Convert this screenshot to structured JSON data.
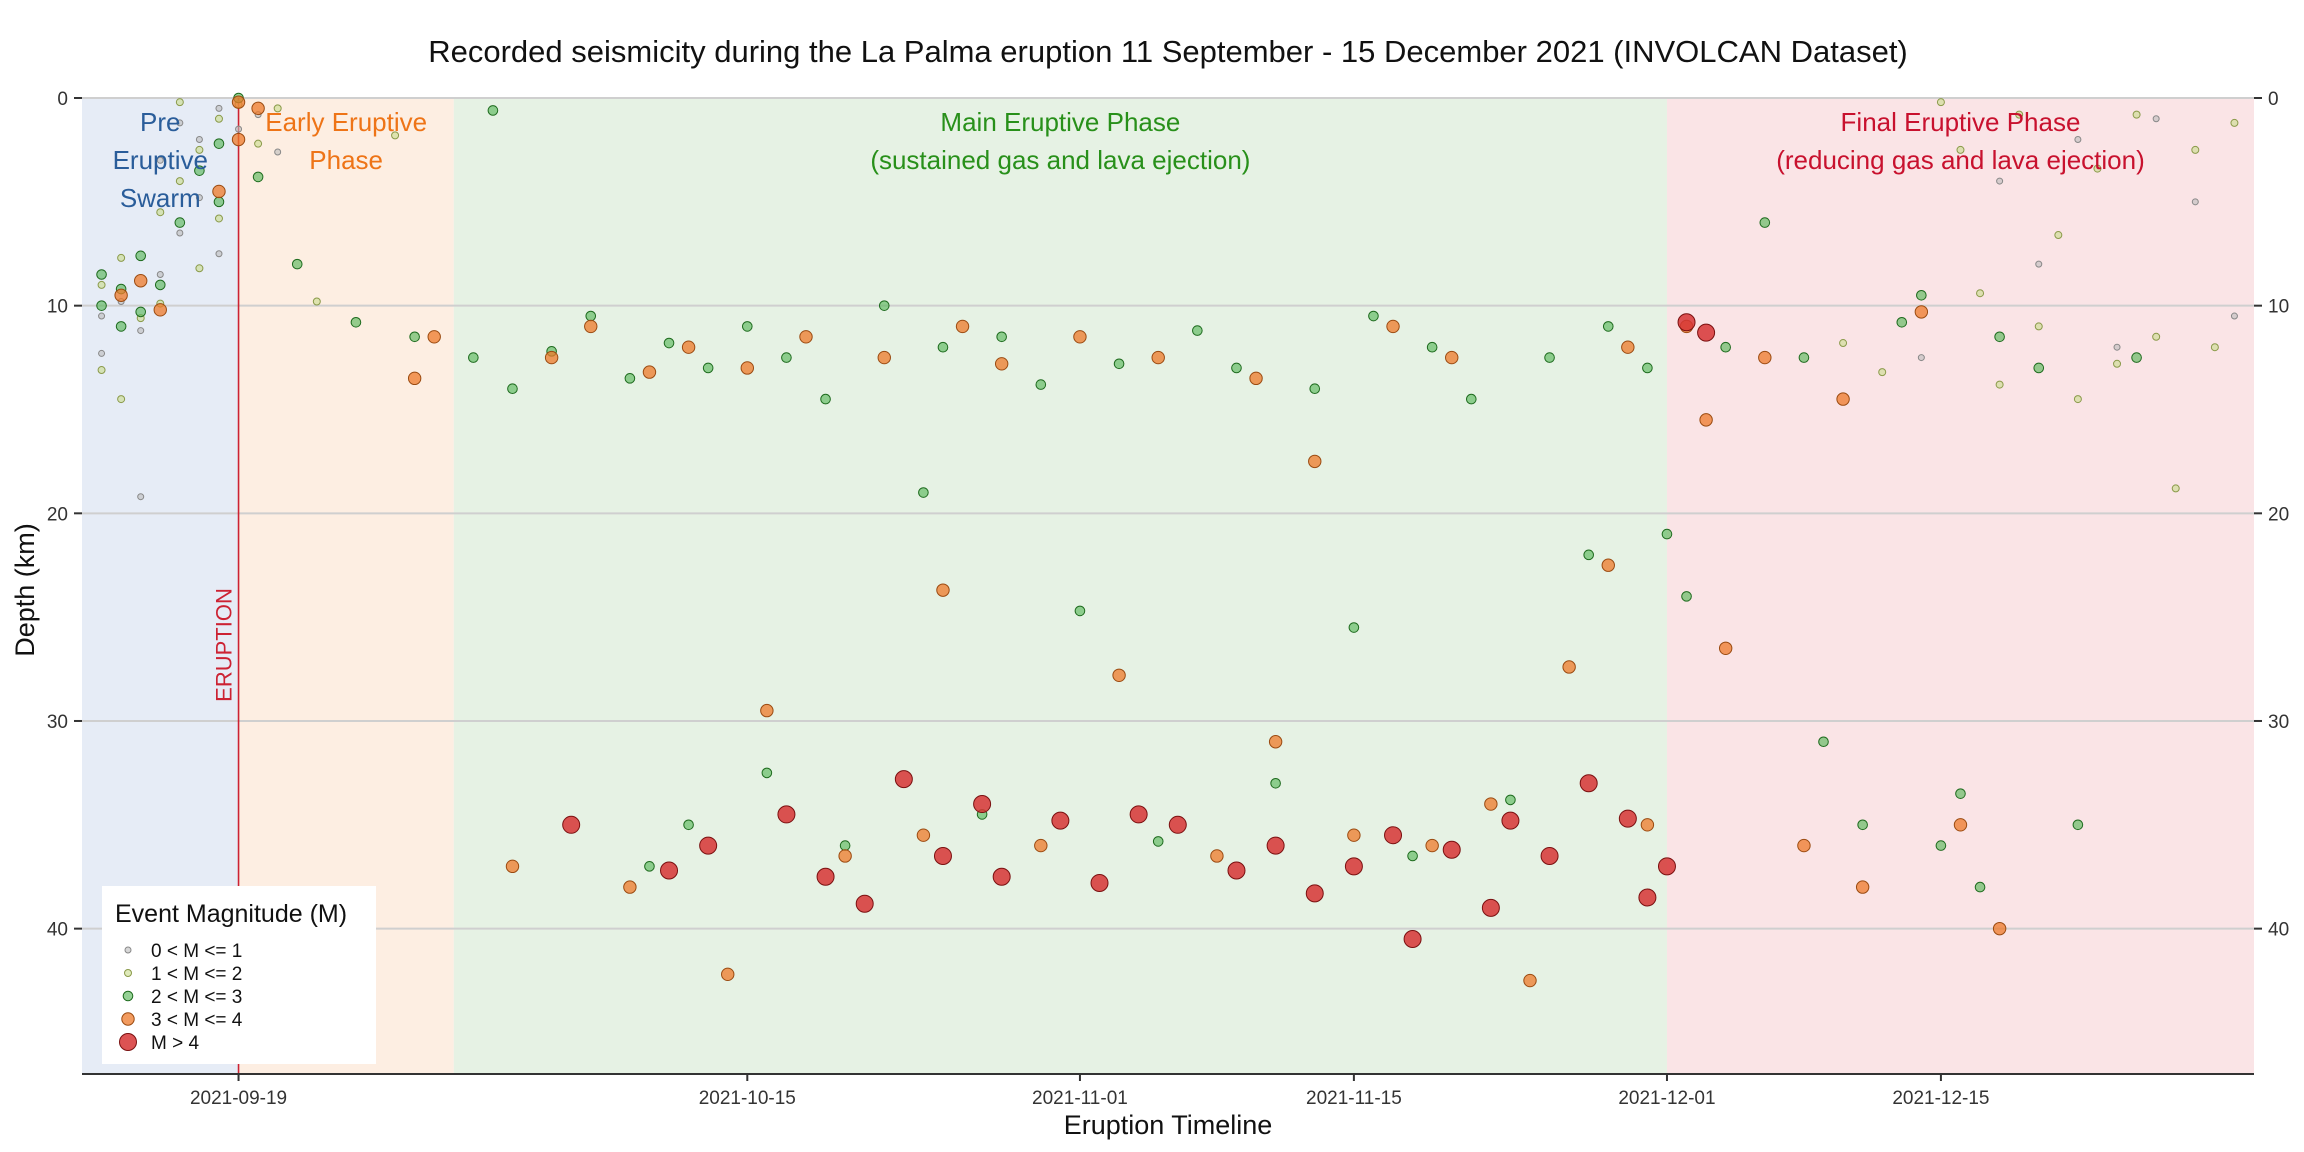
{
  "chart_data": {
    "type": "scatter",
    "title": "Recorded seismicity during the La Palma eruption 11 September - 15 December 2021 (INVOLCAN Dataset)",
    "xlabel": "Eruption Timeline",
    "ylabel": "Depth (km)",
    "x_range": [
      "2021-09-11",
      "2021-12-31"
    ],
    "y_range": [
      0,
      47
    ],
    "y_reversed": true,
    "x_ticks": [
      "2021-09-19",
      "2021-10-15",
      "2021-11-01",
      "2021-11-15",
      "2021-12-01",
      "2021-12-15"
    ],
    "y_ticks": [
      0,
      10,
      20,
      30,
      40
    ],
    "grid": "horizontal",
    "eruption_marker": {
      "date": "2021-09-19",
      "label": "ERUPTION",
      "color": "#cc2233"
    },
    "phases": [
      {
        "name": "pre",
        "lines": [
          "Pre",
          "Eruptive",
          "Swarm"
        ],
        "start": "2021-09-11",
        "end": "2021-09-19",
        "fill": "#e6ecf6",
        "text_color": "#2a5d9a"
      },
      {
        "name": "early",
        "lines": [
          "Early Eruptive",
          "Phase"
        ],
        "start": "2021-09-19",
        "end": "2021-09-30",
        "fill": "#fdeee2",
        "text_color": "#ee7417"
      },
      {
        "name": "main",
        "lines": [
          "Main Eruptive Phase",
          "(sustained gas and lava ejection)"
        ],
        "start": "2021-09-30",
        "end": "2021-12-01",
        "fill": "#e6f2e4",
        "text_color": "#28901a"
      },
      {
        "name": "final",
        "lines": [
          "Final Eruptive Phase",
          "(reducing gas and lava ejection)"
        ],
        "start": "2021-12-01",
        "end": "2021-12-31",
        "fill": "#fae4e6",
        "text_color": "#c8112e"
      }
    ],
    "legend": {
      "title": "Event Magnitude (M)",
      "position": "bottom-left",
      "entries": [
        {
          "label": "0 < M <= 1",
          "color": "#bcbcbc",
          "stroke": "#888888"
        },
        {
          "label": "1 < M <= 2",
          "color": "#c9dc8c",
          "stroke": "#8a9a4a"
        },
        {
          "label": "2 < M <= 3",
          "color": "#5cb85c",
          "stroke": "#1e6b1e"
        },
        {
          "label": "3 < M <= 4",
          "color": "#ee7a2a",
          "stroke": "#9a4a10"
        },
        {
          "label": "M > 4",
          "color": "#d63535",
          "stroke": "#7a1010"
        }
      ]
    },
    "series": [
      {
        "name": "0 < M <= 1",
        "points": [
          [
            "2021-09-12",
            10.5
          ],
          [
            "2021-09-12",
            12.3
          ],
          [
            "2021-09-13",
            9.8
          ],
          [
            "2021-09-14",
            11.2
          ],
          [
            "2021-09-14",
            19.2
          ],
          [
            "2021-09-15",
            8.5
          ],
          [
            "2021-09-15",
            3.0
          ],
          [
            "2021-09-16",
            6.5
          ],
          [
            "2021-09-16",
            1.2
          ],
          [
            "2021-09-17",
            4.8
          ],
          [
            "2021-09-17",
            2.0
          ],
          [
            "2021-09-18",
            0.5
          ],
          [
            "2021-09-18",
            7.5
          ],
          [
            "2021-09-19",
            1.5
          ],
          [
            "2021-09-20",
            0.8
          ],
          [
            "2021-09-21",
            2.6
          ],
          [
            "2021-12-14",
            12.5
          ],
          [
            "2021-12-18",
            4.0
          ],
          [
            "2021-12-20",
            8.0
          ],
          [
            "2021-12-22",
            2.0
          ],
          [
            "2021-12-24",
            12.0
          ],
          [
            "2021-12-26",
            1.0
          ],
          [
            "2021-12-28",
            5.0
          ],
          [
            "2021-12-30",
            10.5
          ]
        ]
      },
      {
        "name": "1 < M <= 2",
        "points": [
          [
            "2021-09-12",
            9.0
          ],
          [
            "2021-09-12",
            13.1
          ],
          [
            "2021-09-13",
            7.7
          ],
          [
            "2021-09-13",
            14.5
          ],
          [
            "2021-09-14",
            10.6
          ],
          [
            "2021-09-15",
            5.5
          ],
          [
            "2021-09-15",
            9.9
          ],
          [
            "2021-09-16",
            4.0
          ],
          [
            "2021-09-16",
            0.2
          ],
          [
            "2021-09-17",
            2.5
          ],
          [
            "2021-09-17",
            8.2
          ],
          [
            "2021-09-18",
            1.0
          ],
          [
            "2021-09-18",
            5.8
          ],
          [
            "2021-09-19",
            0.3
          ],
          [
            "2021-09-20",
            2.2
          ],
          [
            "2021-09-21",
            0.5
          ],
          [
            "2021-09-23",
            9.8
          ],
          [
            "2021-09-27",
            1.8
          ],
          [
            "2021-12-10",
            11.8
          ],
          [
            "2021-12-12",
            13.2
          ],
          [
            "2021-12-15",
            0.2
          ],
          [
            "2021-12-16",
            2.5
          ],
          [
            "2021-12-17",
            9.4
          ],
          [
            "2021-12-18",
            13.8
          ],
          [
            "2021-12-19",
            0.8
          ],
          [
            "2021-12-20",
            11.0
          ],
          [
            "2021-12-21",
            6.6
          ],
          [
            "2021-12-22",
            14.5
          ],
          [
            "2021-12-23",
            3.4
          ],
          [
            "2021-12-24",
            12.8
          ],
          [
            "2021-12-25",
            0.8
          ],
          [
            "2021-12-26",
            11.5
          ],
          [
            "2021-12-27",
            18.8
          ],
          [
            "2021-12-28",
            2.5
          ],
          [
            "2021-12-29",
            12.0
          ],
          [
            "2021-12-30",
            1.2
          ]
        ]
      },
      {
        "name": "2 < M <= 3",
        "points": [
          [
            "2021-09-12",
            10.0
          ],
          [
            "2021-09-12",
            8.5
          ],
          [
            "2021-09-13",
            11.0
          ],
          [
            "2021-09-13",
            9.2
          ],
          [
            "2021-09-14",
            10.3
          ],
          [
            "2021-09-14",
            7.6
          ],
          [
            "2021-09-15",
            9.0
          ],
          [
            "2021-09-16",
            6.0
          ],
          [
            "2021-09-17",
            3.5
          ],
          [
            "2021-09-18",
            2.2
          ],
          [
            "2021-09-18",
            5.0
          ],
          [
            "2021-09-19",
            0.0
          ],
          [
            "2021-09-20",
            3.8
          ],
          [
            "2021-09-22",
            8.0
          ],
          [
            "2021-09-25",
            10.8
          ],
          [
            "2021-09-28",
            11.5
          ],
          [
            "2021-10-01",
            12.5
          ],
          [
            "2021-10-02",
            0.6
          ],
          [
            "2021-10-03",
            14.0
          ],
          [
            "2021-10-05",
            12.2
          ],
          [
            "2021-10-07",
            10.5
          ],
          [
            "2021-10-09",
            13.5
          ],
          [
            "2021-10-10",
            37.0
          ],
          [
            "2021-10-11",
            11.8
          ],
          [
            "2021-10-12",
            35.0
          ],
          [
            "2021-10-13",
            13.0
          ],
          [
            "2021-10-15",
            11.0
          ],
          [
            "2021-10-16",
            32.5
          ],
          [
            "2021-10-17",
            12.5
          ],
          [
            "2021-10-19",
            14.5
          ],
          [
            "2021-10-20",
            36.0
          ],
          [
            "2021-10-22",
            10.0
          ],
          [
            "2021-10-24",
            19.0
          ],
          [
            "2021-10-25",
            12.0
          ],
          [
            "2021-10-27",
            34.5
          ],
          [
            "2021-10-28",
            11.5
          ],
          [
            "2021-10-30",
            13.8
          ],
          [
            "2021-11-01",
            24.7
          ],
          [
            "2021-11-03",
            12.8
          ],
          [
            "2021-11-05",
            35.8
          ],
          [
            "2021-11-07",
            11.2
          ],
          [
            "2021-11-09",
            13.0
          ],
          [
            "2021-11-11",
            33.0
          ],
          [
            "2021-11-13",
            14.0
          ],
          [
            "2021-11-15",
            25.5
          ],
          [
            "2021-11-16",
            10.5
          ],
          [
            "2021-11-18",
            36.5
          ],
          [
            "2021-11-19",
            12.0
          ],
          [
            "2021-11-21",
            14.5
          ],
          [
            "2021-11-23",
            33.8
          ],
          [
            "2021-11-25",
            12.5
          ],
          [
            "2021-11-27",
            22.0
          ],
          [
            "2021-11-28",
            11.0
          ],
          [
            "2021-11-30",
            13.0
          ],
          [
            "2021-12-01",
            21.0
          ],
          [
            "2021-12-02",
            24.0
          ],
          [
            "2021-12-04",
            12.0
          ],
          [
            "2021-12-06",
            6.0
          ],
          [
            "2021-12-08",
            12.5
          ],
          [
            "2021-12-09",
            31.0
          ],
          [
            "2021-12-11",
            35.0
          ],
          [
            "2021-12-13",
            10.8
          ],
          [
            "2021-12-14",
            9.5
          ],
          [
            "2021-12-15",
            36.0
          ],
          [
            "2021-12-16",
            33.5
          ],
          [
            "2021-12-17",
            38.0
          ],
          [
            "2021-12-18",
            11.5
          ],
          [
            "2021-12-20",
            13.0
          ],
          [
            "2021-12-22",
            35.0
          ],
          [
            "2021-12-25",
            12.5
          ]
        ]
      },
      {
        "name": "3 < M <= 4",
        "points": [
          [
            "2021-09-13",
            9.5
          ],
          [
            "2021-09-14",
            8.8
          ],
          [
            "2021-09-15",
            10.2
          ],
          [
            "2021-09-18",
            4.5
          ],
          [
            "2021-09-19",
            0.2
          ],
          [
            "2021-09-19",
            2.0
          ],
          [
            "2021-09-20",
            0.5
          ],
          [
            "2021-09-28",
            13.5
          ],
          [
            "2021-09-29",
            11.5
          ],
          [
            "2021-10-03",
            37.0
          ],
          [
            "2021-10-05",
            12.5
          ],
          [
            "2021-10-07",
            11.0
          ],
          [
            "2021-10-09",
            38.0
          ],
          [
            "2021-10-10",
            13.2
          ],
          [
            "2021-10-12",
            12.0
          ],
          [
            "2021-10-14",
            42.2
          ],
          [
            "2021-10-15",
            13.0
          ],
          [
            "2021-10-16",
            29.5
          ],
          [
            "2021-10-18",
            11.5
          ],
          [
            "2021-10-20",
            36.5
          ],
          [
            "2021-10-22",
            12.5
          ],
          [
            "2021-10-24",
            35.5
          ],
          [
            "2021-10-25",
            23.7
          ],
          [
            "2021-10-26",
            11.0
          ],
          [
            "2021-10-28",
            12.8
          ],
          [
            "2021-10-30",
            36.0
          ],
          [
            "2021-11-01",
            11.5
          ],
          [
            "2021-11-03",
            27.8
          ],
          [
            "2021-11-05",
            12.5
          ],
          [
            "2021-11-08",
            36.5
          ],
          [
            "2021-11-10",
            13.5
          ],
          [
            "2021-11-11",
            31.0
          ],
          [
            "2021-11-13",
            17.5
          ],
          [
            "2021-11-15",
            35.5
          ],
          [
            "2021-11-17",
            11.0
          ],
          [
            "2021-11-19",
            36.0
          ],
          [
            "2021-11-20",
            12.5
          ],
          [
            "2021-11-22",
            34.0
          ],
          [
            "2021-11-24",
            42.5
          ],
          [
            "2021-11-26",
            27.4
          ],
          [
            "2021-11-28",
            22.5
          ],
          [
            "2021-11-29",
            12.0
          ],
          [
            "2021-11-30",
            35.0
          ],
          [
            "2021-12-02",
            11.0
          ],
          [
            "2021-12-03",
            15.5
          ],
          [
            "2021-12-04",
            26.5
          ],
          [
            "2021-12-06",
            12.5
          ],
          [
            "2021-12-08",
            36.0
          ],
          [
            "2021-12-10",
            14.5
          ],
          [
            "2021-12-11",
            38.0
          ],
          [
            "2021-12-14",
            10.3
          ],
          [
            "2021-12-16",
            35.0
          ],
          [
            "2021-12-18",
            40.0
          ]
        ]
      },
      {
        "name": "M > 4",
        "points": [
          [
            "2021-10-06",
            35.0
          ],
          [
            "2021-10-11",
            37.2
          ],
          [
            "2021-10-13",
            36.0
          ],
          [
            "2021-10-17",
            34.5
          ],
          [
            "2021-10-19",
            37.5
          ],
          [
            "2021-10-21",
            38.8
          ],
          [
            "2021-10-23",
            32.8
          ],
          [
            "2021-10-25",
            36.5
          ],
          [
            "2021-10-27",
            34.0
          ],
          [
            "2021-10-28",
            37.5
          ],
          [
            "2021-10-31",
            34.8
          ],
          [
            "2021-11-02",
            37.8
          ],
          [
            "2021-11-04",
            34.5
          ],
          [
            "2021-11-06",
            35.0
          ],
          [
            "2021-11-09",
            37.2
          ],
          [
            "2021-11-11",
            36.0
          ],
          [
            "2021-11-13",
            38.3
          ],
          [
            "2021-11-15",
            37.0
          ],
          [
            "2021-11-17",
            35.5
          ],
          [
            "2021-11-18",
            40.5
          ],
          [
            "2021-11-20",
            36.2
          ],
          [
            "2021-11-22",
            39.0
          ],
          [
            "2021-11-23",
            34.8
          ],
          [
            "2021-11-25",
            36.5
          ],
          [
            "2021-11-27",
            33.0
          ],
          [
            "2021-11-29",
            34.7
          ],
          [
            "2021-11-30",
            38.5
          ],
          [
            "2021-12-01",
            37.0
          ],
          [
            "2021-12-02",
            10.8
          ],
          [
            "2021-12-03",
            11.3
          ]
        ]
      }
    ]
  }
}
